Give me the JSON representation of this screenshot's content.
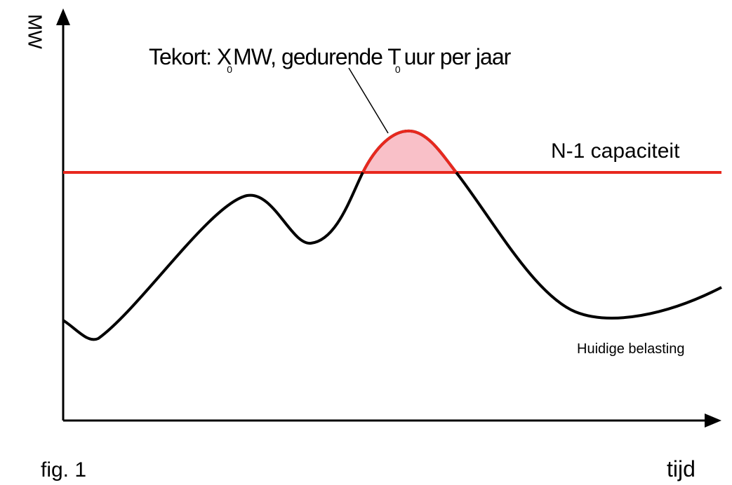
{
  "axes": {
    "y_label": "MW",
    "x_label": "tijd"
  },
  "annotation": {
    "text_1": "Tekort: X",
    "sub_1": "0",
    "text_2": "MW, gedurende T",
    "sub_2": "0",
    "text_3": "uur per jaar"
  },
  "capacity_label": "N-1 capaciteit",
  "load_label": "Huidige belasting",
  "figure_label": "fig. 1"
}
